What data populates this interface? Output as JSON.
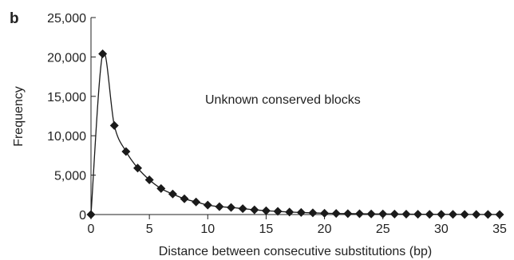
{
  "chart_data": {
    "type": "line",
    "panel_label": "b",
    "annotation": "Unknown conserved blocks",
    "xlabel": "Distance between consecutive substitutions (bp)",
    "ylabel": "Frequency",
    "xlim": [
      0,
      35
    ],
    "ylim": [
      0,
      25000
    ],
    "x_ticks": [
      0,
      5,
      10,
      15,
      20,
      25,
      30,
      35
    ],
    "x_tick_labels": [
      "0",
      "5",
      "10",
      "15",
      "20",
      "25",
      "30",
      "35"
    ],
    "y_ticks": [
      0,
      5000,
      10000,
      15000,
      20000,
      25000
    ],
    "y_tick_labels": [
      "0",
      "5,000",
      "10,000",
      "15,000",
      "20,000",
      "25,000"
    ],
    "grid": false,
    "marker": "diamond",
    "colors": {
      "series": "#1a1a1a",
      "axis": "#222222"
    },
    "series": [
      {
        "x": [
          0,
          1,
          2,
          3,
          4,
          5,
          6,
          7,
          8,
          9,
          10,
          11,
          12,
          13,
          14,
          15,
          16,
          17,
          18,
          19,
          20,
          21,
          22,
          23,
          24,
          25,
          26,
          27,
          28,
          29,
          30,
          31,
          32,
          33,
          34,
          35
        ],
        "y": [
          0,
          20400,
          11300,
          8000,
          5900,
          4400,
          3300,
          2600,
          2000,
          1600,
          1200,
          1000,
          900,
          750,
          600,
          480,
          400,
          320,
          260,
          210,
          170,
          140,
          120,
          100,
          80,
          70,
          60,
          50,
          40,
          30,
          25,
          20,
          15,
          10,
          8,
          5
        ]
      }
    ]
  }
}
